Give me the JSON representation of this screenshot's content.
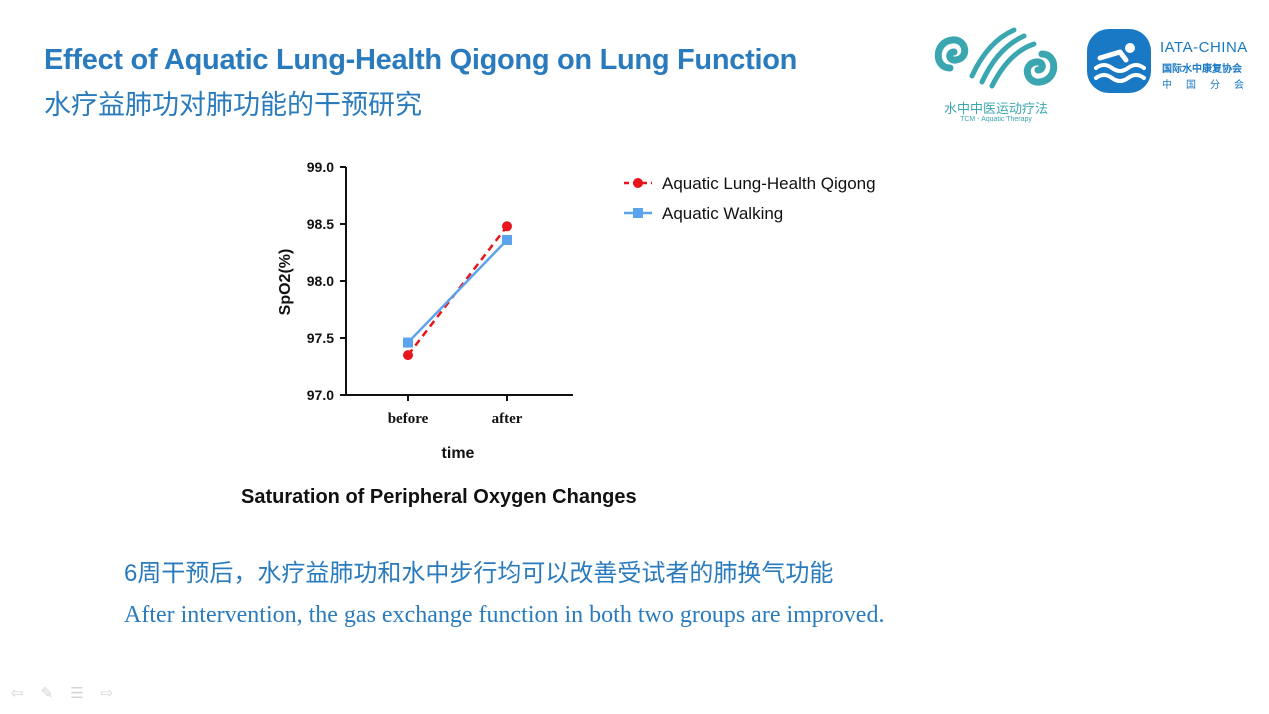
{
  "slide": {
    "title_en": "Effect of Aquatic Lung-Health Qigong on Lung Function",
    "title_zh": "水疗益肺功对肺功能的干预研究",
    "summary_zh": "6周干预后，水疗益肺功和水中步行均可以改善受试者的肺换气功能",
    "summary_en": "After intervention, the gas exchange function in both two groups are improved."
  },
  "logos": {
    "tcm": {
      "name_zh": "水中中医运动疗法",
      "name_en": "TCM - Aquatic Therapy",
      "color": "#3aa6b0"
    },
    "iata": {
      "name": "IATA-CHINA",
      "line_zh": "国际水中康复协会",
      "line2_zh": "中国分会",
      "color": "#1a79c4"
    }
  },
  "nav_icons": [
    "arrow-left-icon",
    "pen-icon",
    "menu-icon",
    "arrow-right-icon"
  ],
  "chart_data": {
    "type": "line",
    "caption": "Saturation of Peripheral Oxygen Changes",
    "xlabel": "time",
    "ylabel": "SpO2(%)",
    "categories": [
      "before",
      "after"
    ],
    "ylim": [
      97.0,
      99.0
    ],
    "yticks": [
      "97.0",
      "97.5",
      "98.0",
      "98.5",
      "99.0"
    ],
    "ytick_values": [
      97.0,
      97.5,
      98.0,
      98.5,
      99.0
    ],
    "grid": false,
    "legend_position": "right",
    "series": [
      {
        "name": "Aquatic Lung-Health Qigong",
        "values": [
          97.35,
          98.48
        ],
        "color": "#e8151c",
        "marker": "circle",
        "dashed": true
      },
      {
        "name": "Aquatic Walking",
        "values": [
          97.46,
          98.36
        ],
        "color": "#5ba3ec",
        "marker": "square",
        "dashed": false
      }
    ]
  }
}
